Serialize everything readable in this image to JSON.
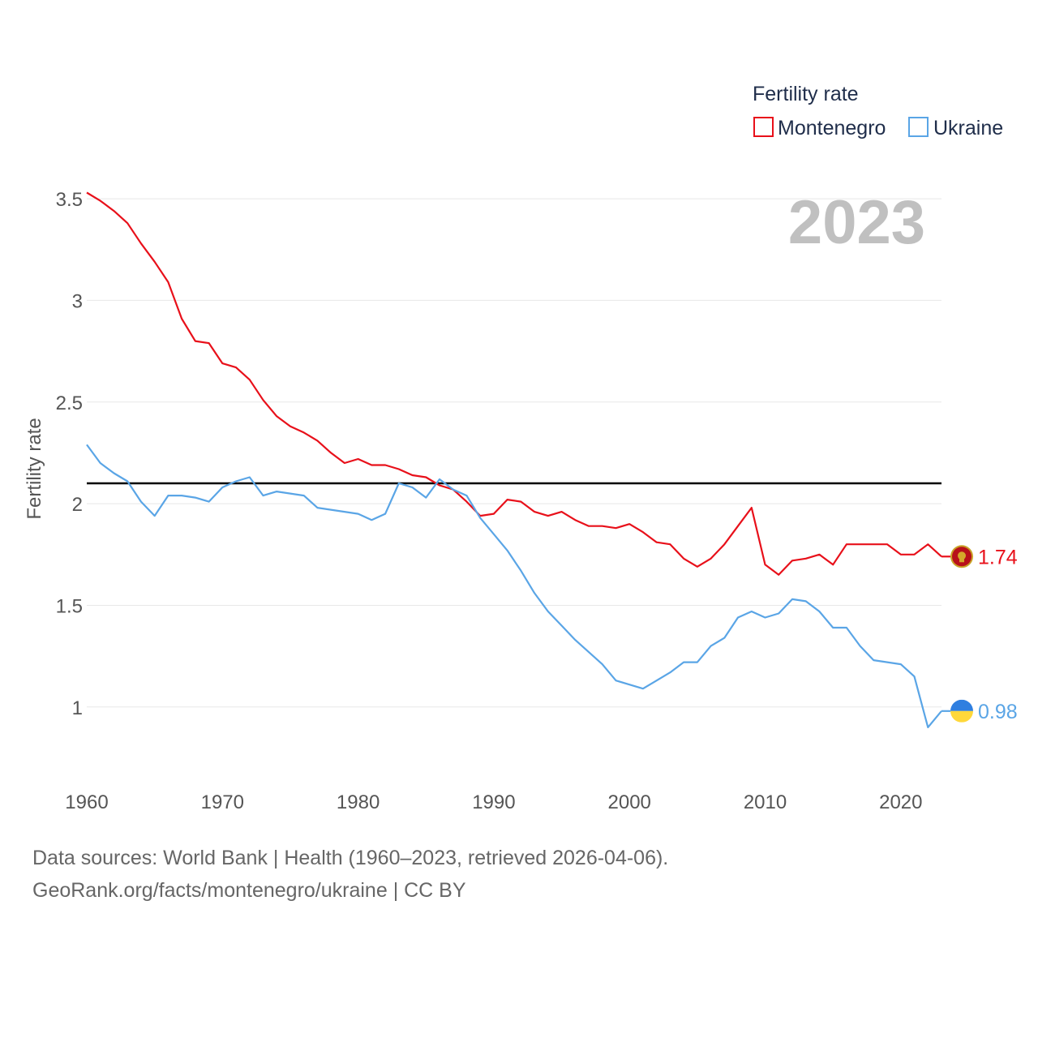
{
  "chart_data": {
    "type": "line",
    "title": "",
    "year_label": "2023",
    "ylabel": "Fertility rate",
    "xlabel": "",
    "xlim": [
      1960,
      2023
    ],
    "ylim": [
      0.7,
      3.6
    ],
    "y_ticks": [
      {
        "value": 1,
        "label": "1"
      },
      {
        "value": 1.5,
        "label": "1.5"
      },
      {
        "value": 2,
        "label": "2"
      },
      {
        "value": 2.5,
        "label": "2.5"
      },
      {
        "value": 3,
        "label": "3"
      },
      {
        "value": 3.5,
        "label": "3.5"
      }
    ],
    "x_ticks": [
      {
        "value": 1960,
        "label": "1960"
      },
      {
        "value": 1970,
        "label": "1970"
      },
      {
        "value": 1980,
        "label": "1980"
      },
      {
        "value": 1990,
        "label": "1990"
      },
      {
        "value": 2000,
        "label": "2000"
      },
      {
        "value": 2010,
        "label": "2010"
      },
      {
        "value": 2020,
        "label": "2020"
      }
    ],
    "grid": true,
    "reference_line": {
      "value": 2.1,
      "color": "#000000"
    },
    "legend": {
      "title": "Fertility rate",
      "position": "top-right"
    },
    "x": [
      1960,
      1961,
      1962,
      1963,
      1964,
      1965,
      1966,
      1967,
      1968,
      1969,
      1970,
      1971,
      1972,
      1973,
      1974,
      1975,
      1976,
      1977,
      1978,
      1979,
      1980,
      1981,
      1982,
      1983,
      1984,
      1985,
      1986,
      1987,
      1988,
      1989,
      1990,
      1991,
      1992,
      1993,
      1994,
      1995,
      1996,
      1997,
      1998,
      1999,
      2000,
      2001,
      2002,
      2003,
      2004,
      2005,
      2006,
      2007,
      2008,
      2009,
      2010,
      2011,
      2012,
      2013,
      2014,
      2015,
      2016,
      2017,
      2018,
      2019,
      2020,
      2021,
      2022,
      2023
    ],
    "series": [
      {
        "name": "Montenegro",
        "color": "#e8101a",
        "end_label": "1.74",
        "flag": "montenegro-flag",
        "values": [
          3.53,
          3.49,
          3.44,
          3.38,
          3.28,
          3.19,
          3.09,
          2.91,
          2.8,
          2.79,
          2.69,
          2.67,
          2.61,
          2.51,
          2.43,
          2.38,
          2.35,
          2.31,
          2.25,
          2.2,
          2.22,
          2.19,
          2.19,
          2.17,
          2.14,
          2.13,
          2.09,
          2.07,
          2.01,
          1.94,
          1.95,
          2.02,
          2.01,
          1.96,
          1.94,
          1.96,
          1.92,
          1.89,
          1.89,
          1.88,
          1.9,
          1.86,
          1.81,
          1.8,
          1.73,
          1.69,
          1.73,
          1.8,
          1.89,
          1.98,
          1.7,
          1.65,
          1.72,
          1.73,
          1.75,
          1.7,
          1.8,
          1.8,
          1.8,
          1.8,
          1.75,
          1.75,
          1.8,
          1.74
        ]
      },
      {
        "name": "Ukraine",
        "color": "#5aa5e6",
        "end_label": "0.98",
        "flag": "ukraine-flag",
        "values": [
          2.29,
          2.2,
          2.15,
          2.11,
          2.01,
          1.94,
          2.04,
          2.04,
          2.03,
          2.01,
          2.08,
          2.11,
          2.13,
          2.04,
          2.06,
          2.05,
          2.04,
          1.98,
          1.97,
          1.96,
          1.95,
          1.92,
          1.95,
          2.1,
          2.08,
          2.03,
          2.12,
          2.07,
          2.04,
          1.93,
          1.85,
          1.77,
          1.67,
          1.56,
          1.47,
          1.4,
          1.33,
          1.27,
          1.21,
          1.13,
          1.11,
          1.09,
          1.13,
          1.17,
          1.22,
          1.22,
          1.3,
          1.34,
          1.44,
          1.47,
          1.44,
          1.46,
          1.53,
          1.52,
          1.47,
          1.39,
          1.39,
          1.3,
          1.23,
          1.22,
          1.21,
          1.15,
          0.9,
          0.98
        ]
      }
    ]
  },
  "footer": {
    "line1": "Data sources: World Bank | Health (1960–2023, retrieved 2026-04-06).",
    "line2": "GeoRank.org/facts/montenegro/ukraine | CC BY"
  }
}
